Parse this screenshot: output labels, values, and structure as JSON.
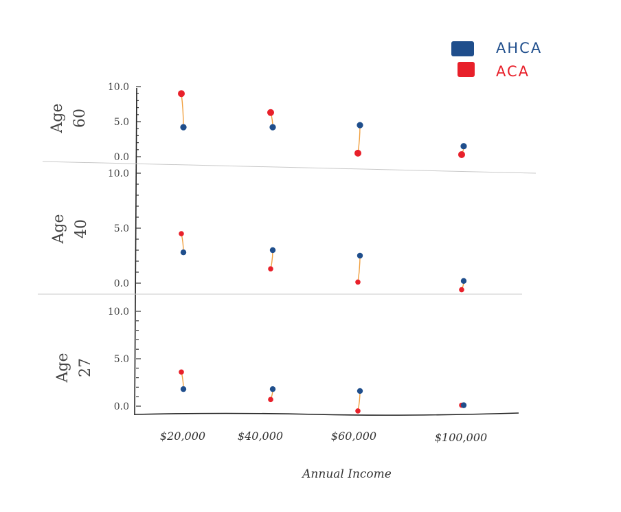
{
  "chart_data": {
    "type": "scatter",
    "title": "",
    "xlabel": "Annual Income",
    "ylabel": "",
    "categories": [
      "$20,000",
      "$40,000",
      "$60,000",
      "$100,000"
    ],
    "ylim": [
      0,
      10
    ],
    "yticks": [
      "0.0",
      "5.0",
      "10.0"
    ],
    "grid": false,
    "legend": {
      "placement": "top-right",
      "entries": [
        "AHCA",
        "ACA"
      ]
    },
    "colors": {
      "AHCA": "#1f4e8c",
      "ACA": "#e8202a",
      "connector": "#f0a040",
      "divider": "#c8c8c8"
    },
    "panels": [
      {
        "label_line1": "Age",
        "label_line2": "60",
        "series": [
          {
            "name": "AHCA",
            "values": [
              4.2,
              4.2,
              4.5,
              1.5
            ]
          },
          {
            "name": "ACA",
            "values": [
              9.0,
              6.3,
              0.5,
              0.3
            ]
          }
        ]
      },
      {
        "label_line1": "Age",
        "label_line2": "40",
        "series": [
          {
            "name": "AHCA",
            "values": [
              2.8,
              3.0,
              2.5,
              0.2
            ]
          },
          {
            "name": "ACA",
            "values": [
              4.5,
              1.3,
              0.1,
              -0.6
            ]
          }
        ]
      },
      {
        "label_line1": "Age",
        "label_line2": "27",
        "series": [
          {
            "name": "AHCA",
            "values": [
              1.8,
              1.8,
              1.6,
              0.1
            ]
          },
          {
            "name": "ACA",
            "values": [
              3.6,
              0.7,
              -0.5,
              0.1
            ]
          }
        ]
      }
    ]
  }
}
